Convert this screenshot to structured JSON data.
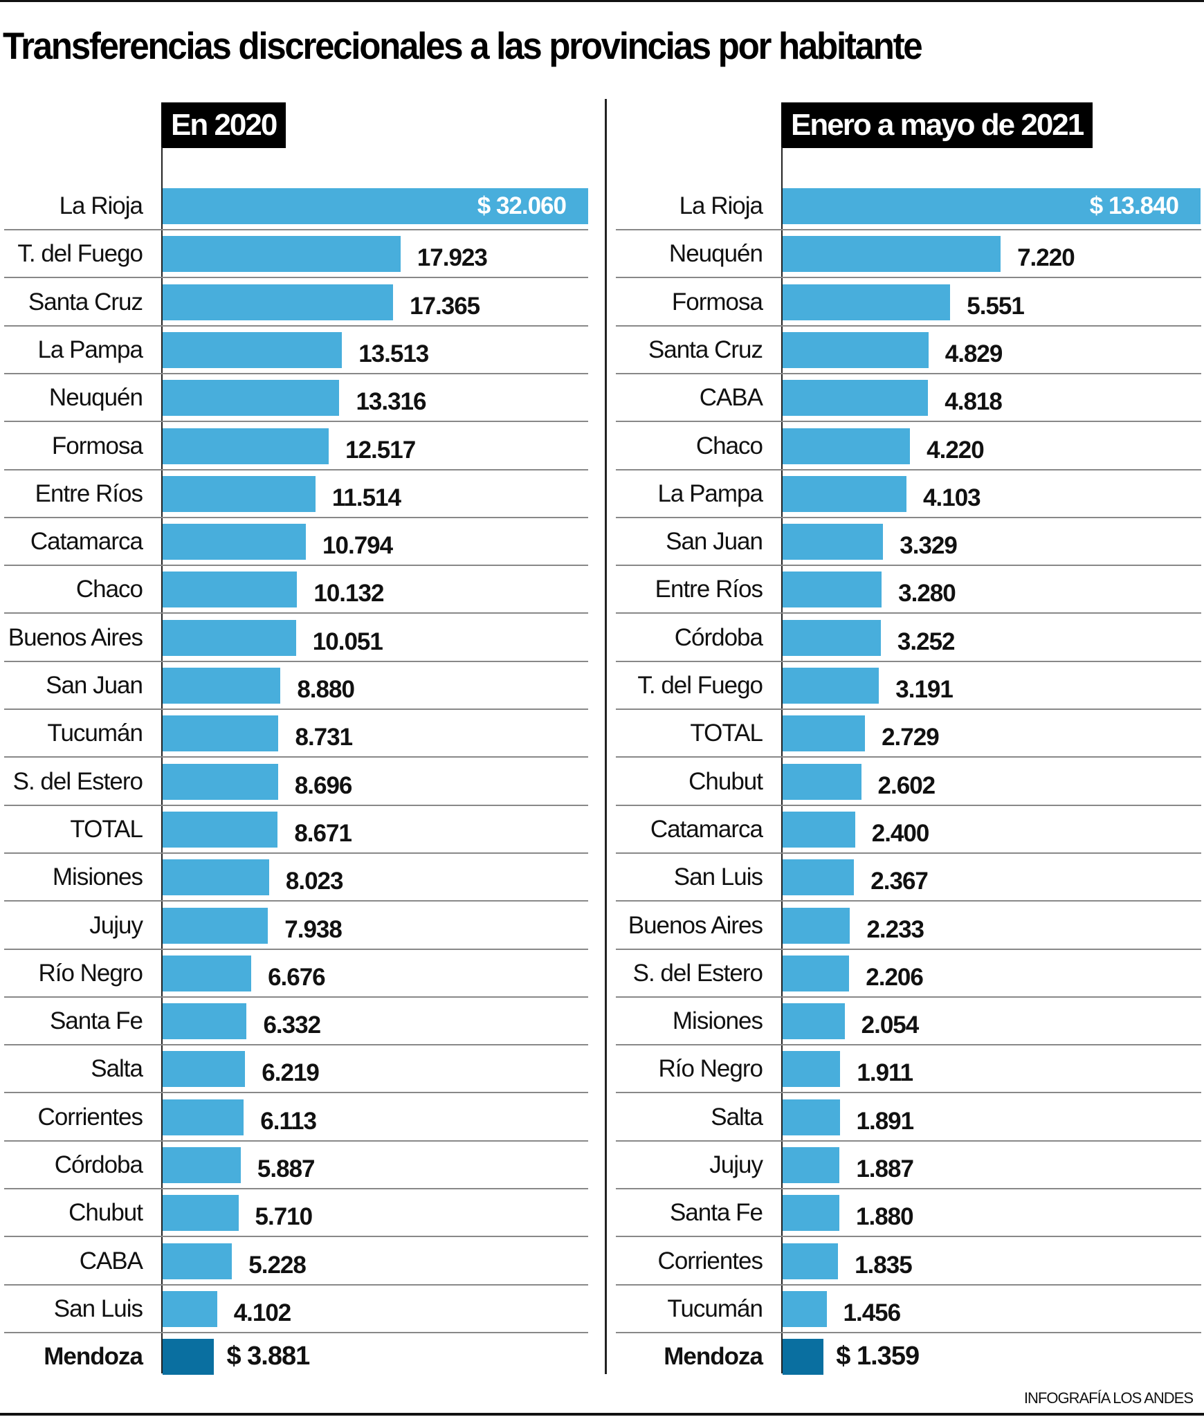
{
  "title": "Transferencias discrecionales a las provincias por habitante",
  "footer": "INFOGRAFÍA LOS ANDES",
  "colors": {
    "bar": "#48aedc",
    "highlight": "#0a6fa0",
    "text": "#111111"
  },
  "chart_data": [
    {
      "type": "bar",
      "orientation": "horizontal",
      "title": "En 2020",
      "xlabel": "",
      "ylabel": "",
      "unit": "$ per inhabitant",
      "xlim": [
        0,
        32060
      ],
      "grid": false,
      "categories": [
        "La Rioja",
        "T. del Fuego",
        "Santa Cruz",
        "La Pampa",
        "Neuquén",
        "Formosa",
        "Entre Ríos",
        "Catamarca",
        "Chaco",
        "Buenos Aires",
        "San Juan",
        "Tucumán",
        "S. del Estero",
        "TOTAL",
        "Misiones",
        "Jujuy",
        "Río Negro",
        "Santa Fe",
        "Salta",
        "Corrientes",
        "Córdoba",
        "Chubut",
        "CABA",
        "San Luis",
        "Mendoza"
      ],
      "values": [
        32060,
        17923,
        17365,
        13513,
        13316,
        12517,
        11514,
        10794,
        10132,
        10051,
        8880,
        8731,
        8696,
        8671,
        8023,
        7938,
        6676,
        6332,
        6219,
        6113,
        5887,
        5710,
        5228,
        4102,
        3881
      ],
      "labels": [
        "$ 32.060",
        "17.923",
        "17.365",
        "13.513",
        "13.316",
        "12.517",
        "11.514",
        "10.794",
        "10.132",
        "10.051",
        "8.880",
        "8.731",
        "8.696",
        "8.671",
        "8.023",
        "7.938",
        "6.676",
        "6.332",
        "6.219",
        "6.113",
        "5.887",
        "5.710",
        "5.228",
        "4.102",
        "$ 3.881"
      ],
      "highlight": "Mendoza"
    },
    {
      "type": "bar",
      "orientation": "horizontal",
      "title": "Enero a mayo de 2021",
      "xlabel": "",
      "ylabel": "",
      "unit": "$ per inhabitant",
      "xlim": [
        0,
        13840
      ],
      "grid": false,
      "categories": [
        "La Rioja",
        "Neuquén",
        "Formosa",
        "Santa Cruz",
        "CABA",
        "Chaco",
        "La Pampa",
        "San Juan",
        "Entre Ríos",
        "Córdoba",
        "T. del Fuego",
        "TOTAL",
        "Chubut",
        "Catamarca",
        "San Luis",
        "Buenos Aires",
        "S. del Estero",
        "Misiones",
        "Río Negro",
        "Salta",
        "Jujuy",
        "Santa Fe",
        "Corrientes",
        "Tucumán",
        "Mendoza"
      ],
      "values": [
        13840,
        7220,
        5551,
        4829,
        4818,
        4220,
        4103,
        3329,
        3280,
        3252,
        3191,
        2729,
        2602,
        2400,
        2367,
        2233,
        2206,
        2054,
        1911,
        1891,
        1887,
        1880,
        1835,
        1456,
        1359
      ],
      "labels": [
        "$ 13.840",
        "7.220",
        "5.551",
        "4.829",
        "4.818",
        "4.220",
        "4.103",
        "3.329",
        "3.280",
        "3.252",
        "3.191",
        "2.729",
        "2.602",
        "2.400",
        "2.367",
        "2.233",
        "2.206",
        "2.054",
        "1.911",
        "1.891",
        "1.887",
        "1.880",
        "1.835",
        "1.456",
        "$ 1.359"
      ],
      "highlight": "Mendoza"
    }
  ]
}
